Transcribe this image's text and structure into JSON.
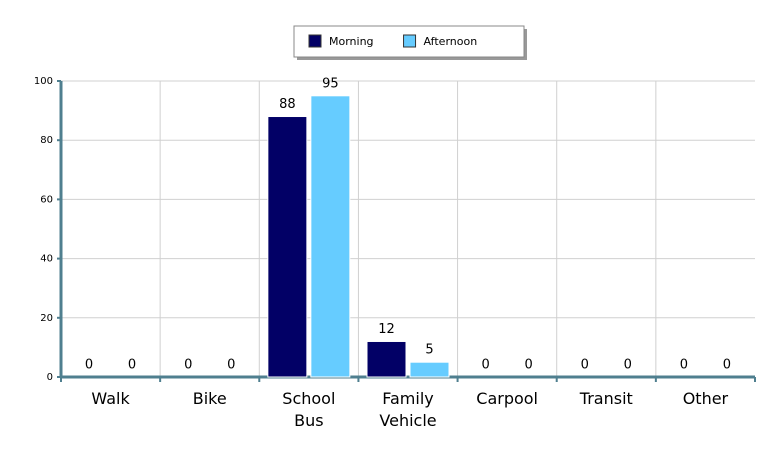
{
  "chart_data": {
    "type": "bar",
    "categories": [
      "Walk",
      "Bike",
      "School Bus",
      "Family Vehicle",
      "Carpool",
      "Transit",
      "Other"
    ],
    "series": [
      {
        "name": "Morning",
        "color": "#020066",
        "values": [
          0,
          0,
          88,
          12,
          0,
          0,
          0
        ]
      },
      {
        "name": "Afternoon",
        "color": "#66ccff",
        "values": [
          0,
          0,
          95,
          5,
          0,
          0,
          0
        ]
      }
    ],
    "ylim": [
      0,
      100
    ],
    "yticks": [
      0,
      20,
      40,
      60,
      80,
      100
    ],
    "grid": true,
    "legend": "top"
  }
}
